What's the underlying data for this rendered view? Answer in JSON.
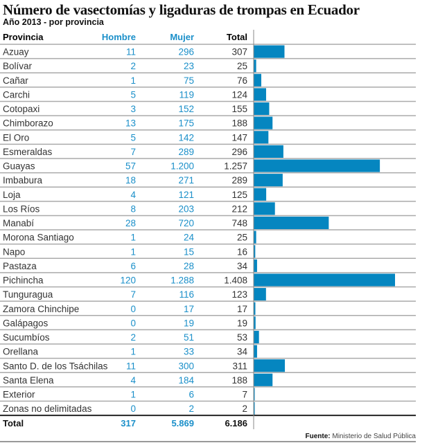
{
  "chart_data": {
    "type": "table",
    "title": "Número de vasectomías y ligaduras de trompas en Ecuador",
    "subtitle": "Año 2013 - por provincia",
    "columns": [
      "Provincia",
      "Hombre",
      "Mujer",
      "Total"
    ],
    "bar_series": "Total",
    "bar_color": "#0586c0",
    "accent_color": "#1a8fc9",
    "rows": [
      {
        "provincia": "Azuay",
        "hombre": "11",
        "mujer": "296",
        "total": "307",
        "value": 307
      },
      {
        "provincia": "Bolívar",
        "hombre": "2",
        "mujer": "23",
        "total": "25",
        "value": 25
      },
      {
        "provincia": "Cañar",
        "hombre": "1",
        "mujer": "75",
        "total": "76",
        "value": 76
      },
      {
        "provincia": "Carchi",
        "hombre": "5",
        "mujer": "119",
        "total": "124",
        "value": 124
      },
      {
        "provincia": "Cotopaxi",
        "hombre": "3",
        "mujer": "152",
        "total": "155",
        "value": 155
      },
      {
        "provincia": "Chimborazo",
        "hombre": "13",
        "mujer": "175",
        "total": "188",
        "value": 188
      },
      {
        "provincia": "El Oro",
        "hombre": "5",
        "mujer": "142",
        "total": "147",
        "value": 147
      },
      {
        "provincia": "Esmeraldas",
        "hombre": "7",
        "mujer": "289",
        "total": "296",
        "value": 296
      },
      {
        "provincia": "Guayas",
        "hombre": "57",
        "mujer": "1.200",
        "total": "1.257",
        "value": 1257
      },
      {
        "provincia": "Imbabura",
        "hombre": "18",
        "mujer": "271",
        "total": "289",
        "value": 289
      },
      {
        "provincia": "Loja",
        "hombre": "4",
        "mujer": "121",
        "total": "125",
        "value": 125
      },
      {
        "provincia": "Los Ríos",
        "hombre": "8",
        "mujer": "203",
        "total": "212",
        "value": 212
      },
      {
        "provincia": "Manabí",
        "hombre": "28",
        "mujer": "720",
        "total": "748",
        "value": 748
      },
      {
        "provincia": "Morona Santiago",
        "hombre": "1",
        "mujer": "24",
        "total": "25",
        "value": 25
      },
      {
        "provincia": "Napo",
        "hombre": "1",
        "mujer": "15",
        "total": "16",
        "value": 16
      },
      {
        "provincia": "Pastaza",
        "hombre": "6",
        "mujer": "28",
        "total": "34",
        "value": 34
      },
      {
        "provincia": "Pichincha",
        "hombre": "120",
        "mujer": "1.288",
        "total": "1.408",
        "value": 1408
      },
      {
        "provincia": "Tunguragua",
        "hombre": "7",
        "mujer": "116",
        "total": "123",
        "value": 123
      },
      {
        "provincia": "Zamora Chinchipe",
        "hombre": "0",
        "mujer": "17",
        "total": "17",
        "value": 17
      },
      {
        "provincia": "Galápagos",
        "hombre": "0",
        "mujer": "19",
        "total": "19",
        "value": 19
      },
      {
        "provincia": "Sucumbíos",
        "hombre": "2",
        "mujer": "51",
        "total": "53",
        "value": 53
      },
      {
        "provincia": "Orellana",
        "hombre": "1",
        "mujer": "33",
        "total": "34",
        "value": 34
      },
      {
        "provincia": "Santo D. de los Tsáchilas",
        "hombre": "11",
        "mujer": "300",
        "total": "311",
        "value": 311
      },
      {
        "provincia": "Santa Elena",
        "hombre": "4",
        "mujer": "184",
        "total": "188",
        "value": 188
      },
      {
        "provincia": "Exterior",
        "hombre": "1",
        "mujer": "6",
        "total": "7",
        "value": 7
      },
      {
        "provincia": "Zonas no delimitadas",
        "hombre": "0",
        "mujer": "2",
        "total": "2",
        "value": 2
      }
    ],
    "total_row": {
      "label": "Total",
      "hombre": "317",
      "mujer": "5.869",
      "total": "6.186"
    }
  },
  "source": {
    "label": "Fuente:",
    "text": "Ministerio de Salud Pública"
  }
}
